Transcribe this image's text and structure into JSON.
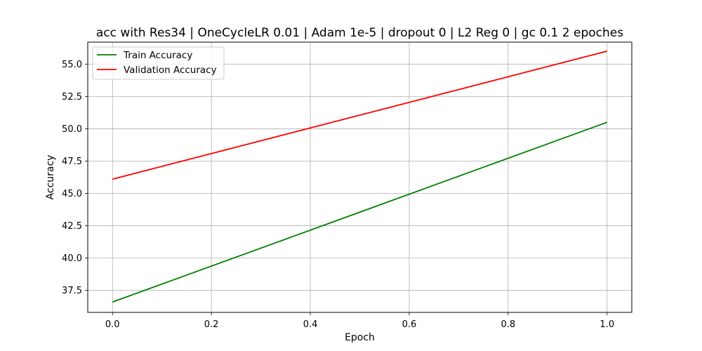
{
  "chart_data": {
    "type": "line",
    "title": "acc with Res34 | OneCycleLR 0.01 | Adam 1e-5 | dropout 0 | L2 Reg 0 | gc 0.1 2 epoches",
    "xlabel": "Epoch",
    "ylabel": "Accuracy",
    "xlim": [
      -0.05,
      1.05
    ],
    "ylim": [
      35.8,
      56.7
    ],
    "xticks": [
      0.0,
      0.2,
      0.4,
      0.6,
      0.8,
      1.0
    ],
    "xtick_labels": [
      "0.0",
      "0.2",
      "0.4",
      "0.6",
      "0.8",
      "1.0"
    ],
    "yticks": [
      37.5,
      40.0,
      42.5,
      45.0,
      47.5,
      50.0,
      52.5,
      55.0
    ],
    "ytick_labels": [
      "37.5",
      "40.0",
      "42.5",
      "45.0",
      "47.5",
      "50.0",
      "52.5",
      "55.0"
    ],
    "grid": true,
    "legend_position": "top-left",
    "series": [
      {
        "name": "Train Accuracy",
        "color": "#008000",
        "x": [
          0,
          1
        ],
        "y": [
          36.6,
          50.5
        ]
      },
      {
        "name": "Validation Accuracy",
        "color": "#ff0000",
        "x": [
          0,
          1
        ],
        "y": [
          46.1,
          56.0
        ]
      }
    ]
  }
}
